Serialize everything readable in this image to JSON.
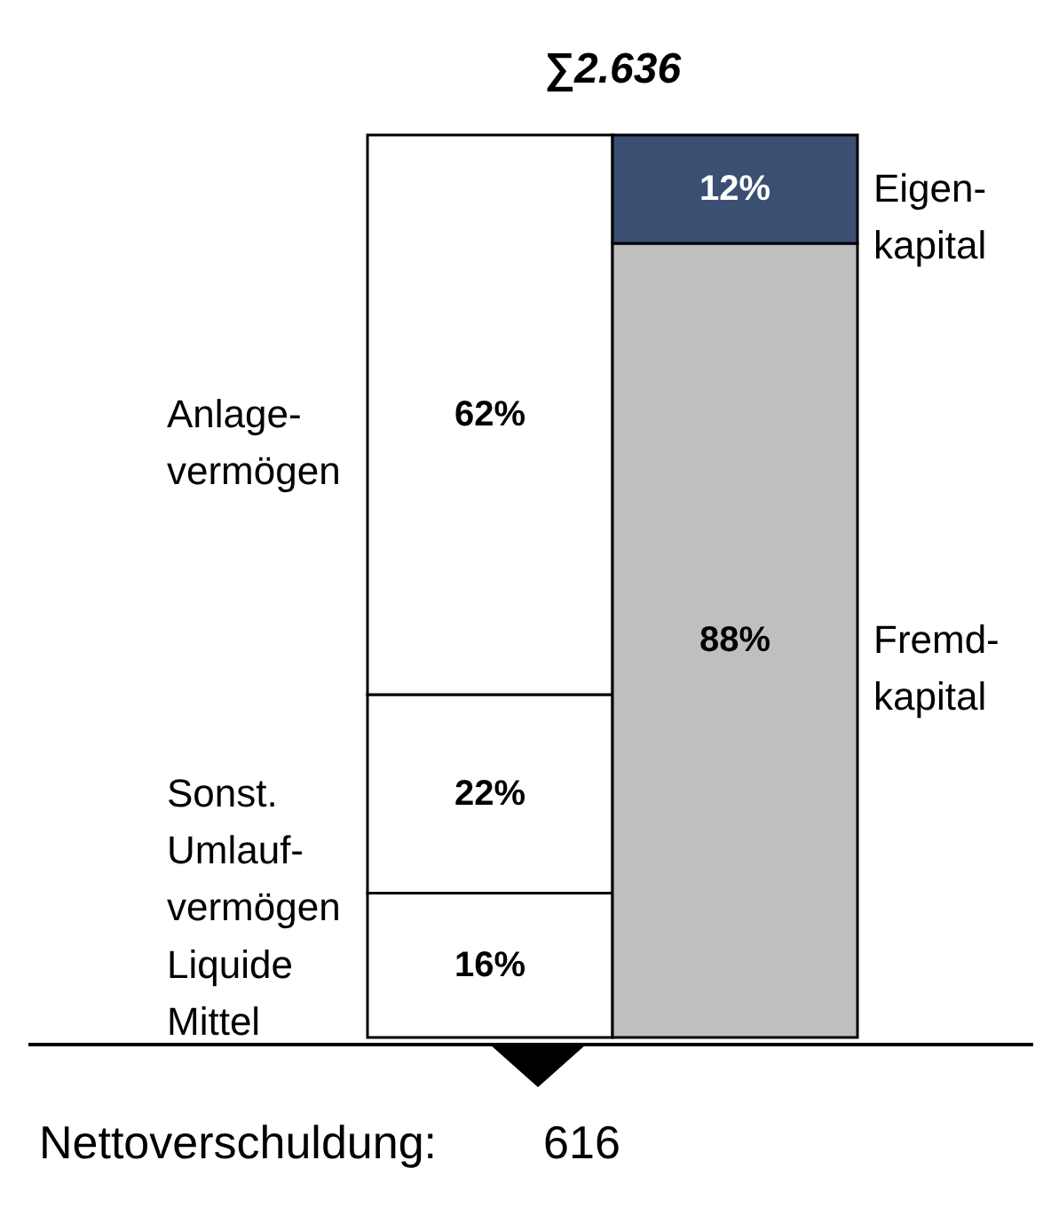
{
  "chart_data": {
    "type": "bar",
    "stacked": true,
    "title": "∑2.636",
    "categories": [
      null,
      null
    ],
    "legend": false,
    "series": [
      {
        "name": "Liquide\nMittel",
        "color": "#ffffff",
        "values": [
          16,
          null
        ],
        "value_labels": [
          "16%",
          null
        ]
      },
      {
        "name": "Sonst.\nUmlauf-\nvermögen",
        "color": "#ffffff",
        "values": [
          22,
          null
        ],
        "value_labels": [
          "22%",
          null
        ]
      },
      {
        "name": "Anlage-\nvermögen",
        "color": "#ffffff",
        "values": [
          62,
          null
        ],
        "value_labels": [
          "62%",
          null
        ]
      },
      {
        "name": "Fremd-\nkapital",
        "color": "#bfbfbf",
        "values": [
          null,
          88
        ],
        "value_labels": [
          null,
          "88%"
        ]
      },
      {
        "name": "Eigen-\nkapital",
        "color": "#3b4f72",
        "values": [
          null,
          12
        ],
        "value_labels": [
          null,
          "12%"
        ]
      }
    ],
    "annotations": [
      "Nettoverschuldung:",
      "616"
    ]
  }
}
